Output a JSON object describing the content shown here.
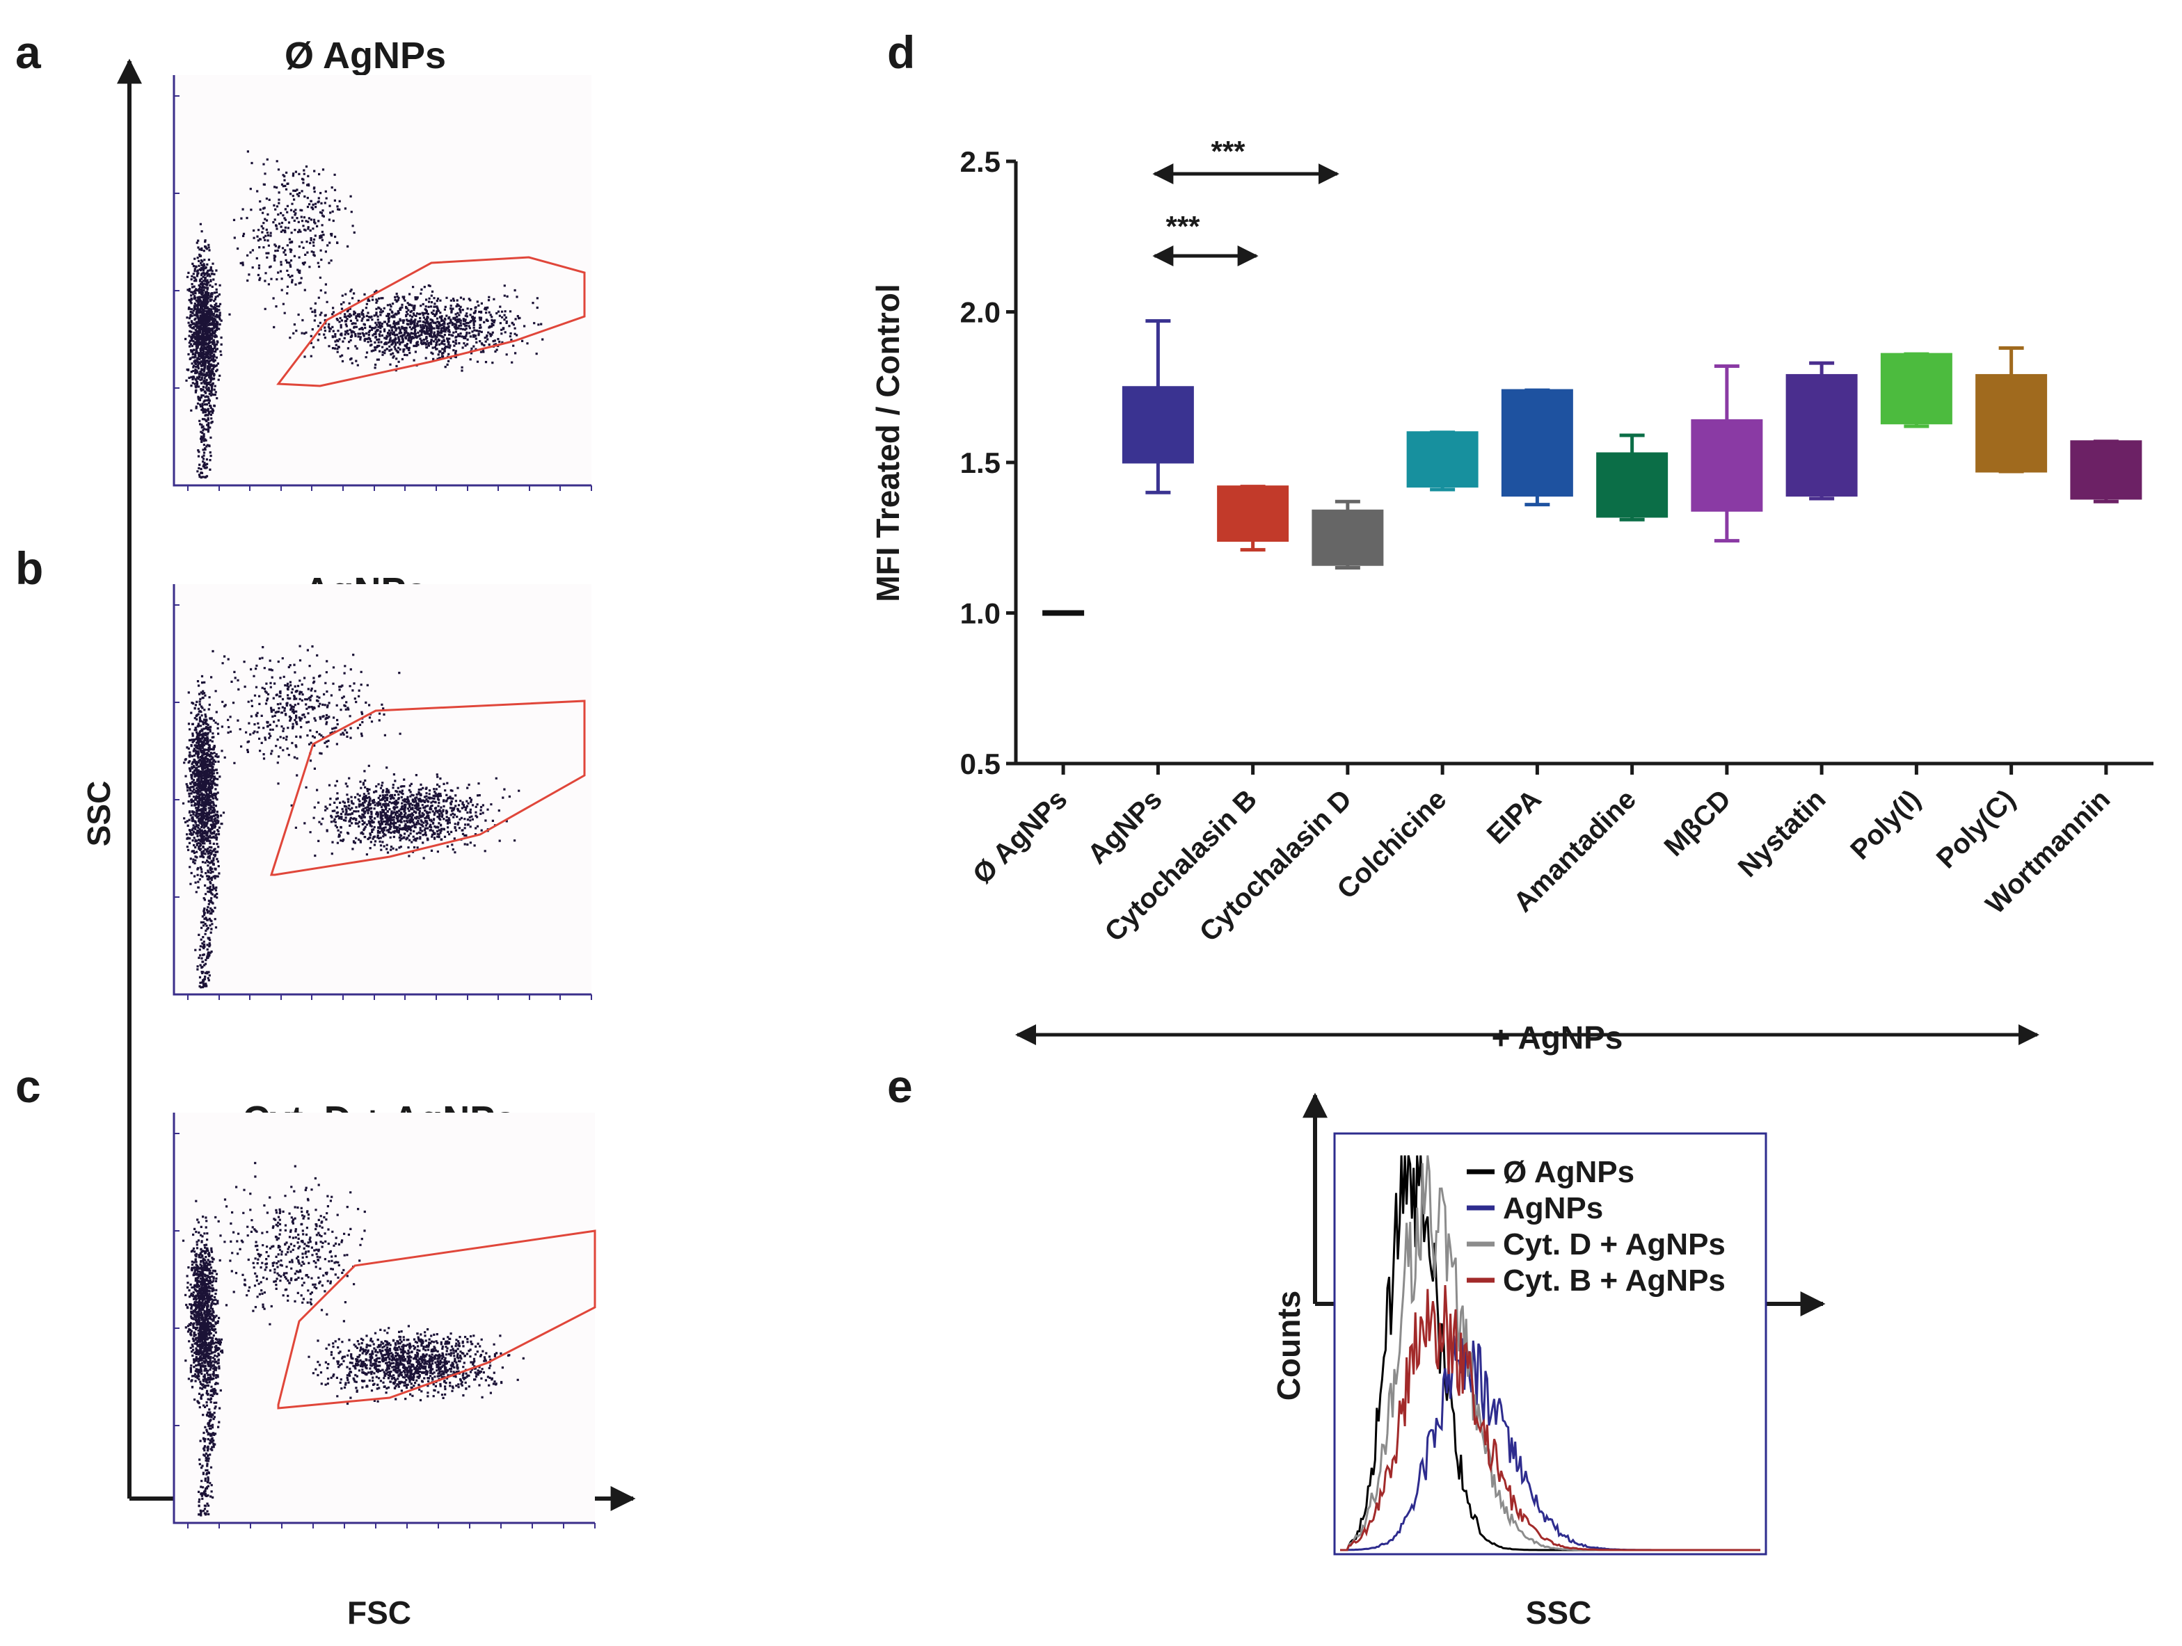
{
  "panels": {
    "a": "a",
    "b": "b",
    "c": "c",
    "d": "d",
    "e": "e"
  },
  "flow": {
    "x_axis_label": "FSC",
    "y_axis_label": "SSC",
    "plots": [
      {
        "title": "Ø  AgNPs"
      },
      {
        "title": "AgNPs"
      },
      {
        "title": "Cyt. D + AgNPs"
      }
    ]
  },
  "colors": {
    "dots": "#1b1236",
    "gate": "#e0463a",
    "frame": "#3a2e8a"
  },
  "chart_data": [
    {
      "type": "box",
      "ylabel": "MFI Treated / Control",
      "ylim": [
        0.5,
        2.5
      ],
      "yticks": [
        "0.5",
        "1.0",
        "1.5",
        "2.0",
        "2.5"
      ],
      "group_label": "+ AgNPs",
      "significance": [
        "***",
        "***"
      ],
      "boxes": [
        {
          "name": "Ø AgNPs",
          "min": 1.0,
          "q1": 1.0,
          "q3": 1.0,
          "max": 1.0,
          "color": "#111111"
        },
        {
          "name": "AgNPs",
          "min": 1.4,
          "q1": 1.5,
          "q3": 1.75,
          "max": 1.97,
          "color": "#3a3391"
        },
        {
          "name": "Cytochalasin B",
          "min": 1.21,
          "q1": 1.24,
          "q3": 1.42,
          "max": 1.42,
          "color": "#c23a2a"
        },
        {
          "name": "Cytochalasin D",
          "min": 1.15,
          "q1": 1.16,
          "q3": 1.34,
          "max": 1.37,
          "color": "#666666"
        },
        {
          "name": "Colchicine",
          "min": 1.41,
          "q1": 1.42,
          "q3": 1.6,
          "max": 1.6,
          "color": "#17909e"
        },
        {
          "name": "EIPA",
          "min": 1.36,
          "q1": 1.39,
          "q3": 1.74,
          "max": 1.74,
          "color": "#1e52a0"
        },
        {
          "name": "Amantadine",
          "min": 1.31,
          "q1": 1.32,
          "q3": 1.53,
          "max": 1.59,
          "color": "#0b6e47"
        },
        {
          "name": "MβCD",
          "min": 1.24,
          "q1": 1.34,
          "q3": 1.64,
          "max": 1.82,
          "color": "#8a3aa4"
        },
        {
          "name": "Nystatin",
          "min": 1.38,
          "q1": 1.39,
          "q3": 1.79,
          "max": 1.83,
          "color": "#4a2e8e"
        },
        {
          "name": "Poly(I)",
          "min": 1.62,
          "q1": 1.63,
          "q3": 1.86,
          "max": 1.86,
          "color": "#4cbb3e"
        },
        {
          "name": "Poly(C)",
          "min": 1.47,
          "q1": 1.47,
          "q3": 1.79,
          "max": 1.88,
          "color": "#a06a1e"
        },
        {
          "name": "Wortmannin",
          "min": 1.37,
          "q1": 1.38,
          "q3": 1.57,
          "max": 1.57,
          "color": "#6c2165"
        }
      ]
    },
    {
      "type": "histogram",
      "xlabel": "SSC",
      "ylabel": "Counts",
      "series": [
        {
          "name": "Ø AgNPs",
          "color": "#000000",
          "peak_x": 0.16,
          "peak_y": 0.95,
          "width": 0.06
        },
        {
          "name": "AgNPs",
          "color": "#2e2c8e",
          "peak_x": 0.29,
          "peak_y": 0.45,
          "width": 0.09
        },
        {
          "name": "Cyt. D + AgNPs",
          "color": "#8c8c8c",
          "peak_x": 0.2,
          "peak_y": 0.82,
          "width": 0.08
        },
        {
          "name": "Cyt. B + AgNPs",
          "color": "#a22a2a",
          "peak_x": 0.22,
          "peak_y": 0.57,
          "width": 0.09
        }
      ]
    }
  ]
}
